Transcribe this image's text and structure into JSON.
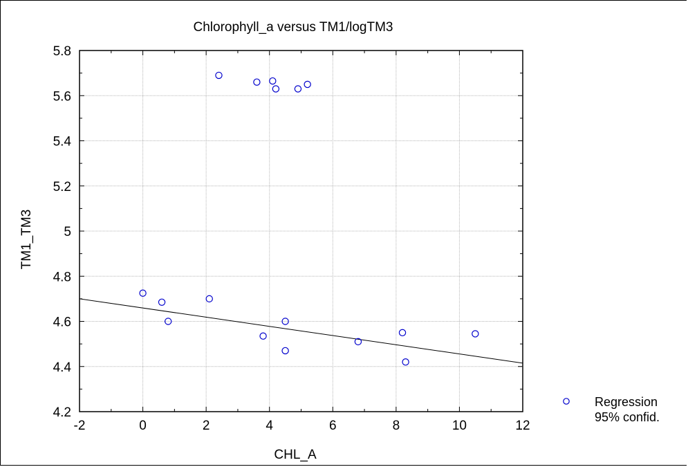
{
  "chart_data": {
    "type": "scatter",
    "title": "Chlorophyll_a versus  TM1/logTM3",
    "xlabel": "CHL_A",
    "ylabel": "TM1_TM3",
    "xlim": [
      -2,
      12
    ],
    "ylim": [
      4.2,
      5.8
    ],
    "xticks": [
      -2,
      0,
      2,
      4,
      6,
      8,
      10,
      12
    ],
    "xtick_labels": [
      "-2",
      "0",
      "2",
      "4",
      "6",
      "8",
      "10",
      "12"
    ],
    "yticks": [
      4.2,
      4.4,
      4.6,
      4.8,
      5.0,
      5.2,
      5.4,
      5.6,
      5.8
    ],
    "ytick_labels": [
      "4.2",
      "4.4",
      "4.6",
      "4.8",
      "5",
      "5.2",
      "5.4",
      "5.6",
      "5.8"
    ],
    "grid": true,
    "points": [
      {
        "x": 2.4,
        "y": 5.69
      },
      {
        "x": 3.6,
        "y": 5.66
      },
      {
        "x": 4.1,
        "y": 5.665
      },
      {
        "x": 4.2,
        "y": 5.63
      },
      {
        "x": 4.9,
        "y": 5.63
      },
      {
        "x": 5.2,
        "y": 5.65
      },
      {
        "x": 0.0,
        "y": 4.725
      },
      {
        "x": 0.6,
        "y": 4.685
      },
      {
        "x": 0.8,
        "y": 4.6
      },
      {
        "x": 2.1,
        "y": 4.7
      },
      {
        "x": 3.8,
        "y": 4.535
      },
      {
        "x": 4.5,
        "y": 4.6
      },
      {
        "x": 4.5,
        "y": 4.47
      },
      {
        "x": 6.8,
        "y": 4.51
      },
      {
        "x": 8.2,
        "y": 4.55
      },
      {
        "x": 8.3,
        "y": 4.42
      },
      {
        "x": 10.5,
        "y": 4.545
      }
    ],
    "regression_line": {
      "x": [
        -2,
        12
      ],
      "y": [
        4.7,
        4.415
      ]
    },
    "point_color": "#0000cc",
    "line_color": "#000000",
    "legend": {
      "placement": "bottom-right",
      "entries": [
        "Regression",
        "95% confid."
      ]
    }
  }
}
